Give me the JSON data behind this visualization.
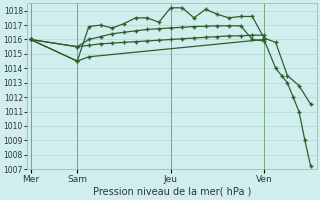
{
  "bg_color": "#d0eeee",
  "plot_bg_color": "#d0eeee",
  "grid_color": "#b0d8d8",
  "line_color": "#2d5f2d",
  "vline_color": "#7aaa7a",
  "ylim": [
    1007,
    1018.5
  ],
  "yticks": [
    1007,
    1008,
    1009,
    1010,
    1011,
    1012,
    1013,
    1014,
    1015,
    1016,
    1017,
    1018
  ],
  "xlabel": "Pression niveau de la mer( hPa )",
  "day_labels": [
    "Mer",
    "Sam",
    "Jeu",
    "Ven"
  ],
  "day_positions": [
    0,
    4,
    12,
    20
  ],
  "xlim": [
    -0.3,
    24.5
  ],
  "series1_x": [
    0,
    4,
    5,
    6,
    7,
    8,
    9,
    10,
    11,
    12,
    13,
    14,
    15,
    16,
    17,
    18,
    19,
    20
  ],
  "series1_y": [
    1016.0,
    1015.5,
    1015.6,
    1015.7,
    1015.75,
    1015.8,
    1015.85,
    1015.9,
    1015.95,
    1016.0,
    1016.05,
    1016.1,
    1016.15,
    1016.2,
    1016.25,
    1016.25,
    1016.3,
    1016.3
  ],
  "series2_x": [
    0,
    4,
    5,
    6,
    7,
    8,
    9,
    10,
    11,
    12,
    13,
    14,
    15,
    16,
    17,
    18,
    19,
    20
  ],
  "series2_y": [
    1016.0,
    1015.5,
    1016.0,
    1016.2,
    1016.4,
    1016.5,
    1016.6,
    1016.7,
    1016.75,
    1016.8,
    1016.85,
    1016.9,
    1016.92,
    1016.95,
    1016.95,
    1016.95,
    1016.0,
    1015.9
  ],
  "series3_x": [
    0,
    4,
    5,
    6,
    7,
    8,
    9,
    10,
    11,
    12,
    13,
    14,
    15,
    16,
    17,
    18,
    19,
    20,
    21,
    22,
    23,
    24
  ],
  "series3_y": [
    1016.0,
    1014.5,
    1016.9,
    1017.0,
    1016.8,
    1017.1,
    1017.5,
    1017.5,
    1017.2,
    1018.2,
    1018.2,
    1017.5,
    1018.1,
    1017.75,
    1017.5,
    1017.6,
    1017.6,
    1016.1,
    1015.8,
    1013.5,
    1012.8,
    1011.5
  ],
  "series4_x": [
    0,
    4,
    5,
    20,
    21,
    21.5,
    22,
    22.5,
    23,
    23.5,
    24
  ],
  "series4_y": [
    1016.0,
    1014.5,
    1014.8,
    1016.0,
    1014.0,
    1013.5,
    1013.0,
    1012.0,
    1011.0,
    1009.0,
    1007.2
  ],
  "vline_positions": [
    0,
    4,
    12,
    20
  ]
}
